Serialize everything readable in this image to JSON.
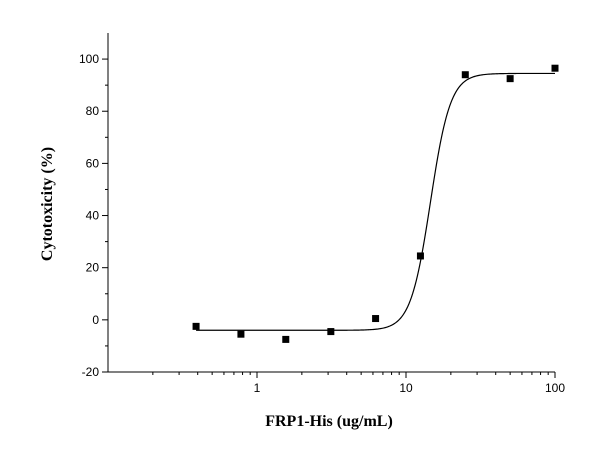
{
  "chart_data": {
    "type": "scatter",
    "xlabel": "FRP1-His (ug/mL)",
    "ylabel": "Cytotoxicity (%)",
    "x_scale": "log",
    "xlim": [
      0.1,
      100
    ],
    "ylim": [
      -20,
      110
    ],
    "x_ticks": [
      1,
      10,
      100
    ],
    "x_tick_labels": [
      "1",
      "10",
      "100"
    ],
    "y_ticks": [
      -20,
      0,
      20,
      40,
      60,
      80,
      100
    ],
    "y_tick_labels": [
      "-20",
      "0",
      "20",
      "40",
      "60",
      "80",
      "100"
    ],
    "grid": false,
    "legend": "none",
    "series": [
      {
        "marker": "square",
        "color": "#000000",
        "points": [
          {
            "x": 0.39,
            "y": -2.5
          },
          {
            "x": 0.78,
            "y": -5.5
          },
          {
            "x": 1.56,
            "y": -7.5
          },
          {
            "x": 3.13,
            "y": -4.5
          },
          {
            "x": 6.25,
            "y": 0.5
          },
          {
            "x": 12.5,
            "y": 24.5
          },
          {
            "x": 25,
            "y": 94
          },
          {
            "x": 50,
            "y": 92.5
          },
          {
            "x": 100,
            "y": 96.5
          }
        ]
      }
    ],
    "fit_curve": {
      "type": "sigmoid",
      "bottom": -4,
      "top": 94.5,
      "x_center": 14.6,
      "hill_slope": 6.5,
      "color": "#000000"
    }
  }
}
